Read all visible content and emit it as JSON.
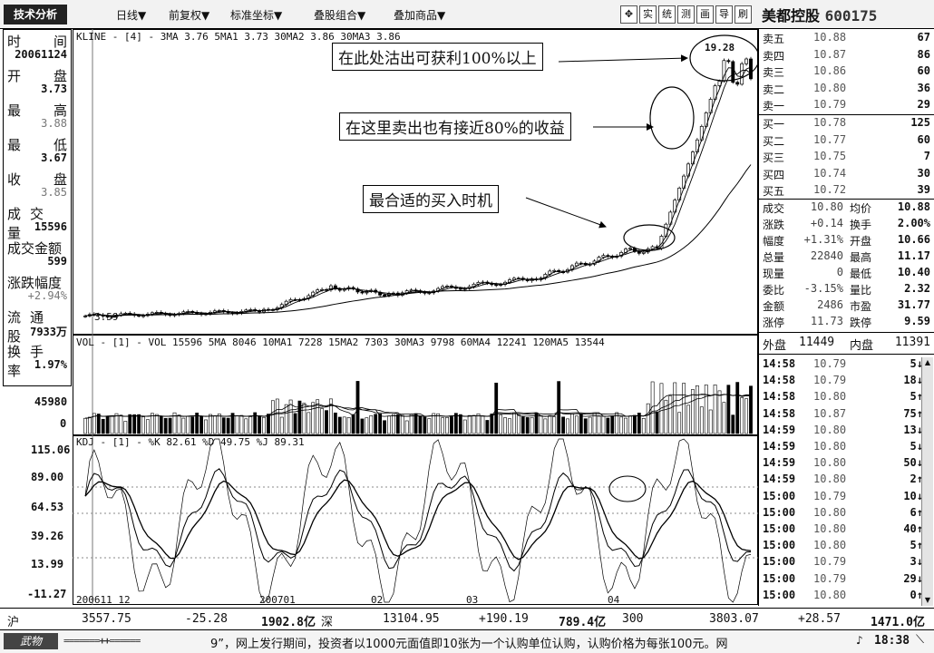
{
  "toolbar": {
    "tech_analysis": "技术分析",
    "menus": [
      "日线▼",
      "前复权▼",
      "标准坐标▼",
      "叠股组合▼",
      "叠加商品▼"
    ],
    "tool_buttons": [
      "✥",
      "实",
      "统",
      "测",
      "画",
      "导",
      "刷"
    ],
    "stock_name": "美都控股",
    "stock_code": "600175"
  },
  "left_panel": {
    "rows": [
      {
        "label_a": "时",
        "label_b": "间"
      },
      {
        "value": "20061124"
      },
      {
        "label_a": "开",
        "label_b": "盘"
      },
      {
        "value": "3.73"
      },
      {
        "label_a": "最",
        "label_b": "高"
      },
      {
        "value": "3.88",
        "gray": true
      },
      {
        "label_a": "最",
        "label_b": "低"
      },
      {
        "value": "3.67"
      },
      {
        "label_a": "收",
        "label_b": "盘"
      },
      {
        "value": "3.85",
        "gray": true
      },
      {
        "label_a": "成交量"
      },
      {
        "value": "15596"
      },
      {
        "label_a": "成交金额"
      },
      {
        "value": "599"
      },
      {
        "label_a": "涨跌幅度"
      },
      {
        "value": "+2.94%",
        "gray": true
      },
      {
        "label_a": "流通股"
      },
      {
        "value": "7933万"
      },
      {
        "label_a": "换手率"
      },
      {
        "value": "1.97%"
      }
    ]
  },
  "kline": {
    "header": "KLINE - [4] - 3MA 3.76  5MA1 3.73  30MA2 3.86  30MA3 3.86",
    "low_label": "3.59",
    "high_label": "19.28",
    "annotations": [
      "在此处沽出可获利100%以上",
      "在这里卖出也有接近80%的收益",
      "最合适的买入时机"
    ]
  },
  "volume": {
    "header": "VOL - [1] - VOL 15596  5MA 8046  10MA1 7228  15MA2 7303  30MA3 9798  60MA4 12241  120MA5 13544",
    "axis": [
      "45980",
      "0"
    ]
  },
  "kdj": {
    "header": "KDJ - [1] - %K 82.61  %D 49.75  %J 89.31",
    "axis": [
      "115.06",
      "89.00",
      "64.53",
      "39.26",
      "13.99",
      "-11.27"
    ]
  },
  "date_axis": [
    "200611 12",
    "200701",
    "02",
    "03",
    "04"
  ],
  "quotes": {
    "sell": [
      {
        "label": "卖五",
        "price": "10.88",
        "vol": "67"
      },
      {
        "label": "卖四",
        "price": "10.87",
        "vol": "86"
      },
      {
        "label": "卖三",
        "price": "10.86",
        "vol": "60"
      },
      {
        "label": "卖二",
        "price": "10.80",
        "vol": "36"
      },
      {
        "label": "卖一",
        "price": "10.79",
        "vol": "29"
      }
    ],
    "buy": [
      {
        "label": "买一",
        "price": "10.78",
        "vol": "125"
      },
      {
        "label": "买二",
        "price": "10.77",
        "vol": "60"
      },
      {
        "label": "买三",
        "price": "10.75",
        "vol": "7"
      },
      {
        "label": "买四",
        "price": "10.74",
        "vol": "30"
      },
      {
        "label": "买五",
        "price": "10.72",
        "vol": "39"
      }
    ],
    "stats": [
      {
        "l1": "成交",
        "v1": "10.80",
        "l2": "均价",
        "v2": "10.88"
      },
      {
        "l1": "涨跌",
        "v1": "+0.14",
        "l2": "换手",
        "v2": "2.00%"
      },
      {
        "l1": "幅度",
        "v1": "+1.31%",
        "l2": "开盘",
        "v2": "10.66"
      },
      {
        "l1": "总量",
        "v1": "22840",
        "l2": "最高",
        "v2": "11.17"
      },
      {
        "l1": "现量",
        "v1": "0",
        "l2": "最低",
        "v2": "10.40"
      },
      {
        "l1": "委比",
        "v1": "-3.15%",
        "l2": "量比",
        "v2": "2.32"
      },
      {
        "l1": "金额",
        "v1": "2486",
        "l2": "市盈",
        "v2": "31.77"
      },
      {
        "l1": "涨停",
        "v1": "11.73",
        "l2": "跌停",
        "v2": "9.59"
      }
    ],
    "outer_label": "外盘",
    "outer_value": "11449",
    "inner_label": "内盘",
    "inner_value": "11391"
  },
  "ticks": [
    {
      "time": "14:58",
      "price": "10.79",
      "vol": "5↓"
    },
    {
      "time": "14:58",
      "price": "10.79",
      "vol": "18↓"
    },
    {
      "time": "14:58",
      "price": "10.80",
      "vol": "5↑"
    },
    {
      "time": "14:58",
      "price": "10.87",
      "vol": "75↑"
    },
    {
      "time": "14:59",
      "price": "10.80",
      "vol": "13↓"
    },
    {
      "time": "14:59",
      "price": "10.80",
      "vol": "5↓"
    },
    {
      "time": "14:59",
      "price": "10.80",
      "vol": "50↓"
    },
    {
      "time": "14:59",
      "price": "10.80",
      "vol": "2↑"
    },
    {
      "time": "15:00",
      "price": "10.79",
      "vol": "10↓"
    },
    {
      "time": "15:00",
      "price": "10.80",
      "vol": "6↑"
    },
    {
      "time": "15:00",
      "price": "10.80",
      "vol": "40↑"
    },
    {
      "time": "15:00",
      "price": "10.80",
      "vol": "5↑"
    },
    {
      "time": "15:00",
      "price": "10.79",
      "vol": "3↓"
    },
    {
      "time": "15:00",
      "price": "10.79",
      "vol": "29↓"
    },
    {
      "time": "15:00",
      "price": "10.80",
      "vol": "0↑"
    }
  ],
  "status": {
    "sh_label": "沪",
    "sh_index": "3557.75",
    "sh_change": "-25.28",
    "sh_amount": "1902.8亿",
    "sz_label": "深",
    "sz_index": "13104.95",
    "sz_change": "+190.19",
    "sz_amount": "789.4亿",
    "idx300_label": "300",
    "idx300_index": "3803.07",
    "idx300_change": "+28.57",
    "idx300_amount": "1471.0亿",
    "ticker_text": "9”，网上发行期间，投资者以1000元面值即10张为一个认购单位认购，认购价格为每张100元。网",
    "time": "18:38",
    "logo": "武物"
  },
  "colors": {
    "line": "#000000",
    "panel_bg": "#ffffff",
    "bar_bg": "#f2f2f2"
  }
}
